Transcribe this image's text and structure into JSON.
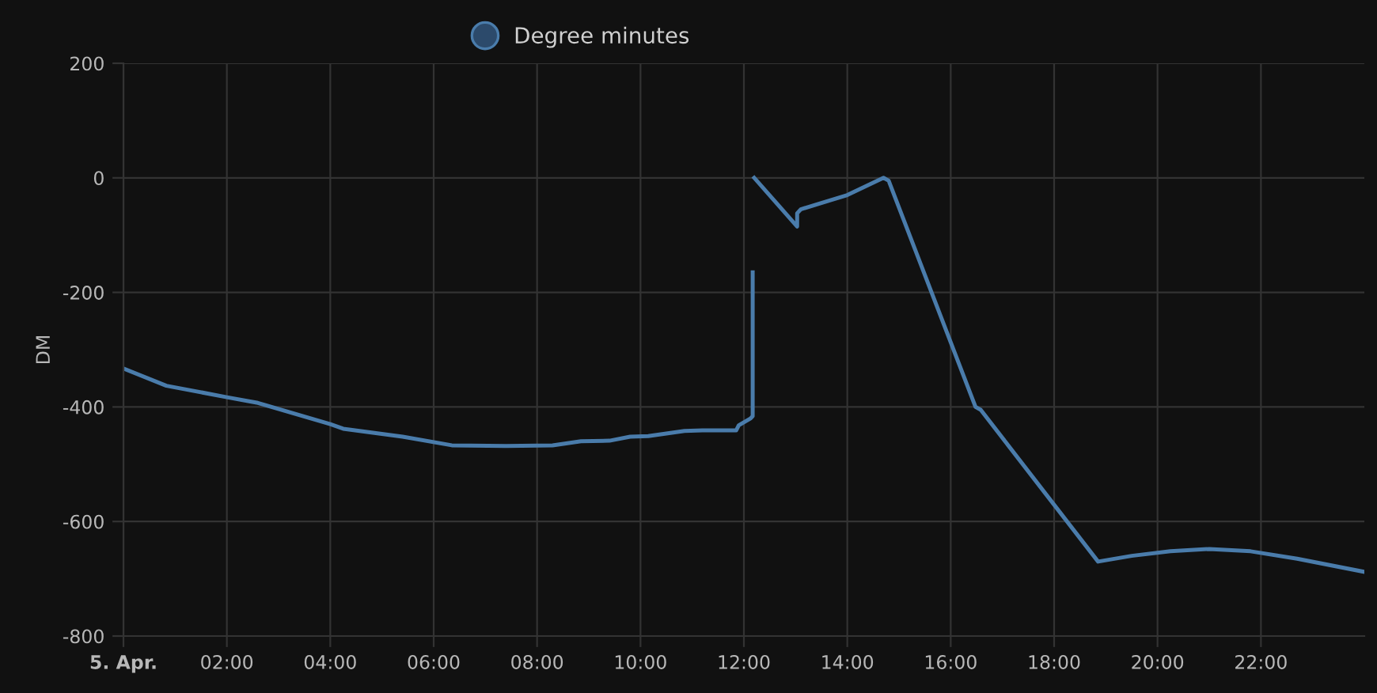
{
  "chart_data": {
    "type": "line",
    "ylabel": "DM",
    "x": [
      0,
      0.83,
      2.0,
      2.6,
      4.0,
      4.25,
      5.4,
      6.35,
      7.4,
      8.3,
      8.85,
      9.4,
      9.8,
      10.15,
      10.85,
      11.2,
      11.85,
      11.9,
      12.13,
      12.17,
      12.17,
      12.18,
      12.2,
      13.03,
      13.03,
      13.1,
      14.0,
      14.7,
      14.8,
      16.48,
      16.58,
      18.85,
      19.5,
      20.25,
      21.0,
      21.8,
      22.7,
      24.0
    ],
    "series": [
      {
        "name": "Degree minutes",
        "color": "#4a7cab",
        "values": [
          -333,
          -363,
          -383,
          -393,
          -430,
          -438,
          -452,
          -467,
          -468,
          -467,
          -460,
          -459,
          -452,
          -451,
          -442,
          -441,
          -441,
          -432,
          -420,
          -416,
          -165,
          null,
          0,
          -85,
          -62,
          -55,
          -30,
          0,
          -5,
          -400,
          -405,
          -670,
          -660,
          -652,
          -648,
          -652,
          -665,
          -688
        ]
      }
    ],
    "xlim": [
      0,
      24
    ],
    "xticks": [
      {
        "value": 0,
        "label": "5. Apr."
      },
      {
        "value": 2,
        "label": "02:00"
      },
      {
        "value": 4,
        "label": "04:00"
      },
      {
        "value": 6,
        "label": "06:00"
      },
      {
        "value": 8,
        "label": "08:00"
      },
      {
        "value": 10,
        "label": "10:00"
      },
      {
        "value": 12,
        "label": "12:00"
      },
      {
        "value": 14,
        "label": "14:00"
      },
      {
        "value": 16,
        "label": "16:00"
      },
      {
        "value": 18,
        "label": "18:00"
      },
      {
        "value": 20,
        "label": "20:00"
      },
      {
        "value": 22,
        "label": "22:00"
      }
    ],
    "ylim": [
      -800,
      200
    ],
    "yticks": [
      -800,
      -600,
      -400,
      -200,
      0,
      200
    ],
    "grid": true,
    "legend": "top",
    "line_style": "solid"
  }
}
